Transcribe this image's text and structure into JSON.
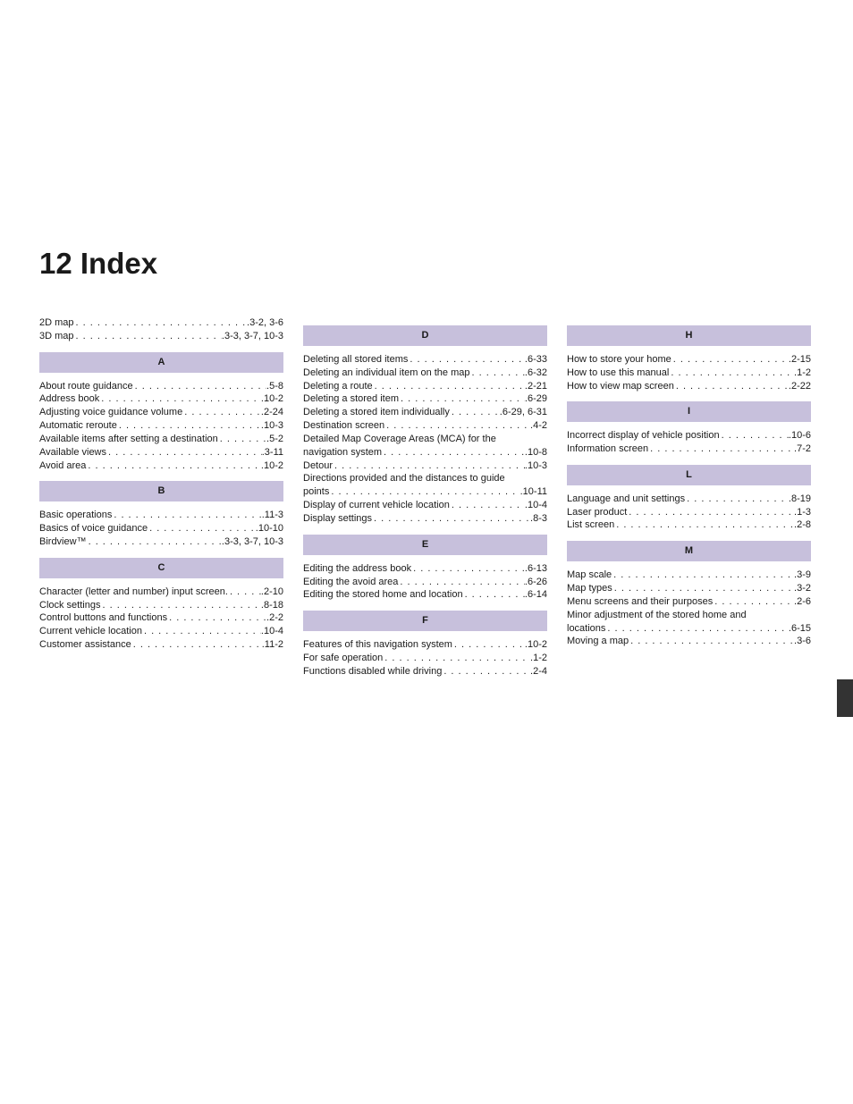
{
  "title": "12  Index",
  "columns": [
    {
      "pre": [
        {
          "label": "2D map",
          "page": "3-2, 3-6"
        },
        {
          "label": "3D map",
          "page": "3-3, 3-7, 10-3"
        }
      ],
      "sections": [
        {
          "letter": "A",
          "entries": [
            {
              "label": "About route guidance",
              "page": "5-8"
            },
            {
              "label": "Address book",
              "page": "10-2"
            },
            {
              "label": "Adjusting voice guidance volume",
              "page": "2-24"
            },
            {
              "label": "Automatic reroute",
              "page": "10-3"
            },
            {
              "label": "Available items after setting a destination",
              "page": "5-2"
            },
            {
              "label": "Available views",
              "page": "3-11"
            },
            {
              "label": "Avoid area",
              "page": "10-2"
            }
          ]
        },
        {
          "letter": "B",
          "entries": [
            {
              "label": "Basic operations",
              "page": "11-3"
            },
            {
              "label": "Basics of voice guidance",
              "page": "10-10"
            },
            {
              "label": "Birdview™",
              "page": "3-3, 3-7, 10-3"
            }
          ]
        },
        {
          "letter": "C",
          "entries": [
            {
              "label": "Character (letter and number) input screen.",
              "page": "2-10"
            },
            {
              "label": "Clock settings",
              "page": "8-18"
            },
            {
              "label": "Control buttons and functions",
              "page": "2-2"
            },
            {
              "label": "Current vehicle location",
              "page": "10-4"
            },
            {
              "label": "Customer assistance",
              "page": "11-2"
            }
          ]
        }
      ]
    },
    {
      "pre": [],
      "sections": [
        {
          "letter": "D",
          "entries": [
            {
              "label": "Deleting all stored items",
              "page": "6-33"
            },
            {
              "label": "Deleting an individual item on the map",
              "page": "6-32"
            },
            {
              "label": "Deleting a route",
              "page": "2-21"
            },
            {
              "label": "Deleting a stored item",
              "page": "6-29"
            },
            {
              "label": "Deleting a stored item individually",
              "page": "6-29, 6-31"
            },
            {
              "label": "Destination screen",
              "page": "4-2"
            },
            {
              "label": "Detailed Map Coverage Areas (MCA) for the",
              "wrap": true
            },
            {
              "label": "navigation system",
              "page": "10-8"
            },
            {
              "label": "Detour",
              "page": "10-3"
            },
            {
              "label": "Directions provided and the distances to guide",
              "wrap": true
            },
            {
              "label": "points",
              "page": "10-11"
            },
            {
              "label": "Display of current vehicle location",
              "page": "10-4"
            },
            {
              "label": "Display settings",
              "page": "8-3"
            }
          ]
        },
        {
          "letter": "E",
          "entries": [
            {
              "label": "Editing the address book",
              "page": "6-13"
            },
            {
              "label": "Editing the avoid area",
              "page": "6-26"
            },
            {
              "label": "Editing the stored home and location",
              "page": "6-14"
            }
          ]
        },
        {
          "letter": "F",
          "entries": [
            {
              "label": "Features of this navigation system",
              "page": "10-2"
            },
            {
              "label": "For safe operation",
              "page": "1-2"
            },
            {
              "label": "Functions disabled while driving",
              "page": "2-4"
            }
          ]
        }
      ]
    },
    {
      "pre": [],
      "sections": [
        {
          "letter": "H",
          "entries": [
            {
              "label": "How to store your home",
              "page": "2-15"
            },
            {
              "label": "How to use this manual",
              "page": "1-2"
            },
            {
              "label": "How to view map screen",
              "page": "2-22"
            }
          ]
        },
        {
          "letter": "I",
          "entries": [
            {
              "label": "Incorrect display of vehicle position",
              "page": "10-6"
            },
            {
              "label": "Information screen",
              "page": "7-2"
            }
          ]
        },
        {
          "letter": "L",
          "entries": [
            {
              "label": "Language and unit settings",
              "page": "8-19"
            },
            {
              "label": "Laser product",
              "page": "1-3"
            },
            {
              "label": "List screen",
              "page": "2-8"
            }
          ]
        },
        {
          "letter": "M",
          "entries": [
            {
              "label": "Map scale",
              "page": "3-9"
            },
            {
              "label": "Map types",
              "page": "3-2"
            },
            {
              "label": "Menu screens and their purposes",
              "page": "2-6"
            },
            {
              "label": "Minor adjustment of the stored home and",
              "wrap": true
            },
            {
              "label": "locations",
              "page": "6-15"
            },
            {
              "label": "Moving a map",
              "page": "3-6"
            }
          ]
        }
      ]
    }
  ],
  "colors": {
    "section_header_bg": "#c7c0dc",
    "text": "#1a1a1a",
    "tab": "#333333"
  }
}
